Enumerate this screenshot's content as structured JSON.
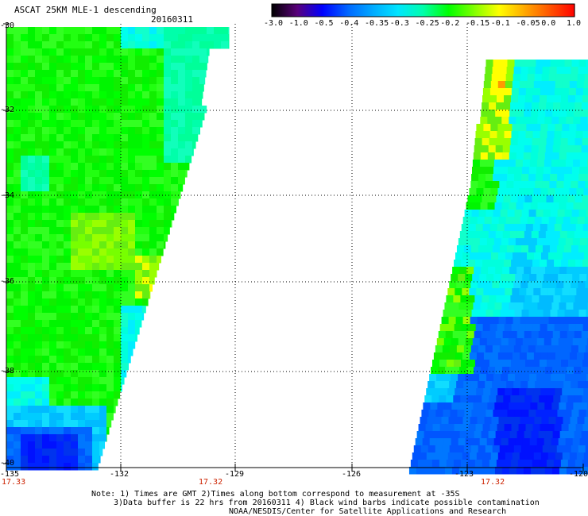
{
  "header": {
    "title": "ASCAT 25KM MLE-1 descending",
    "date": "20160311"
  },
  "colorbar": {
    "labels": [
      "-3.0",
      "-1.0",
      "-0.5",
      "-0.4",
      "-0.35",
      "-0.3",
      "-0.25",
      "-0.2",
      "-0.15",
      "-0.1",
      "-0.05",
      "0.0",
      "1.0"
    ],
    "colors": [
      "#000000",
      "#5a007a",
      "#0000ff",
      "#0066ff",
      "#00aaff",
      "#00e5ff",
      "#00ffaa",
      "#00ff00",
      "#7fff00",
      "#ffff00",
      "#ffaa00",
      "#ff5500",
      "#ff0000"
    ]
  },
  "axes": {
    "lat_labels": [
      "-30",
      "-32",
      "-34",
      "-36",
      "-38",
      "-40"
    ],
    "lon_labels": [
      "-135",
      "-132",
      "-129",
      "-126",
      "-123",
      "-120"
    ]
  },
  "times": {
    "left": "17.33",
    "middle": "17.32",
    "right": "17.32"
  },
  "notes": {
    "line1": "Note: 1) Times are GMT 2)Times along bottom correspond to measurement at -35S",
    "line2": "3)Data buffer is 22 hrs from 20160311 4) Black wind barbs indicate possible contamination",
    "line3": "NOAA/NESDIS/Center for Satellite Applications and Research"
  }
}
